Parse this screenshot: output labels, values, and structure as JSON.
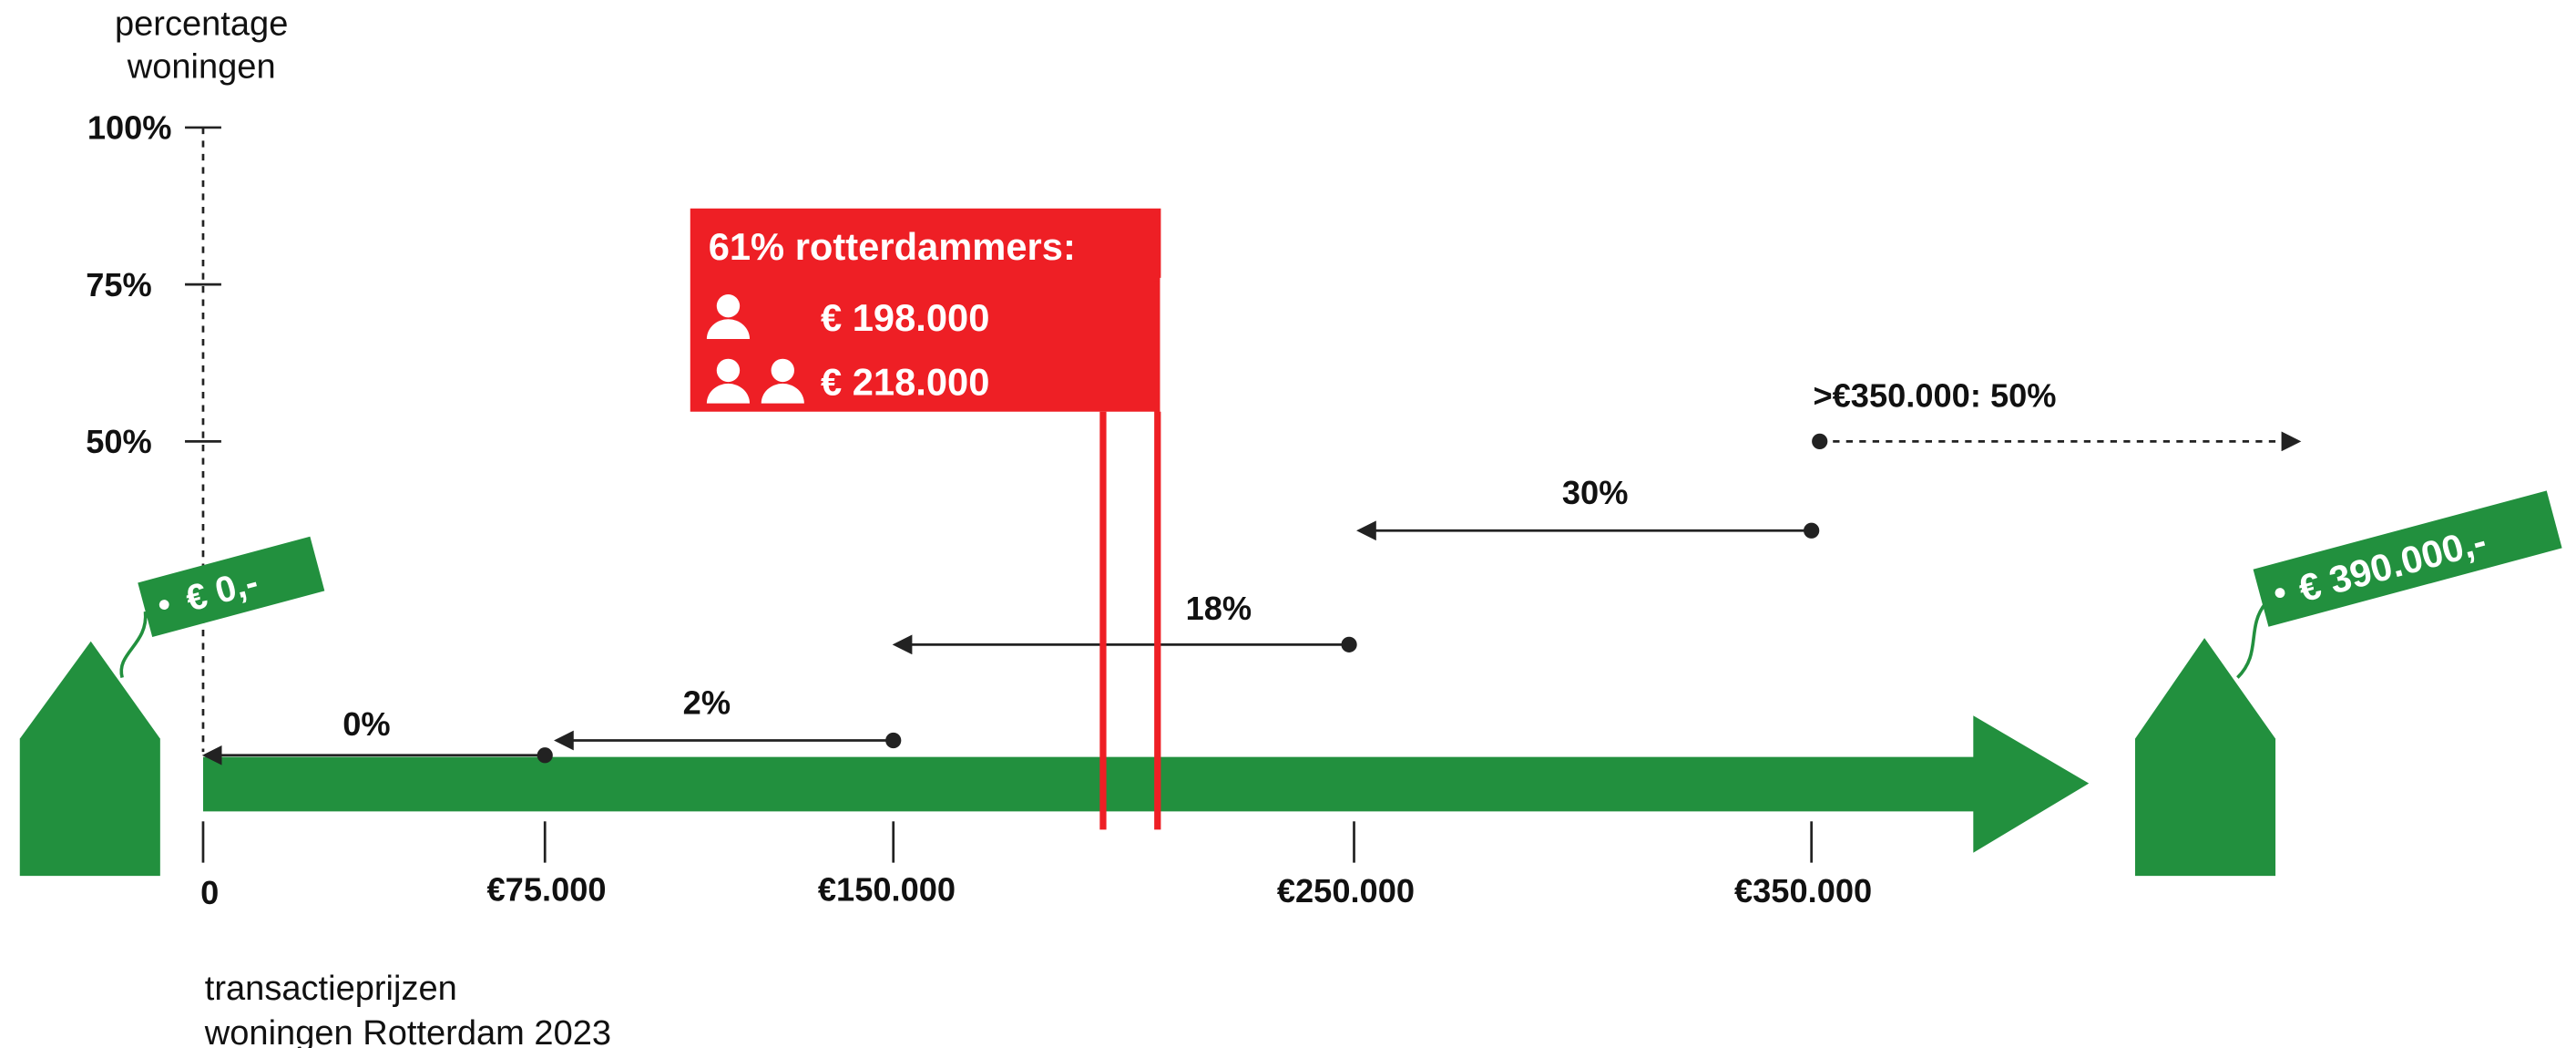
{
  "y_axis": {
    "label": [
      "percentage",
      "woningen"
    ],
    "ticks": [
      "100%",
      "75%",
      "50%"
    ]
  },
  "x_axis": {
    "label": [
      "transactieprijzen",
      "woningen Rotterdam 2023"
    ],
    "ticks": [
      "0",
      "€75.000",
      "€150.000",
      "€250.000",
      "€350.000"
    ]
  },
  "price_tags": [
    "€ 0,-",
    "€ 390.000,-"
  ],
  "ranges": [
    "0%",
    "2%",
    "18%",
    "30%",
    ">€350.000: 50%"
  ],
  "callout": {
    "title": "61% rotterdammers:",
    "rows": [
      "€ 198.000",
      "€ 218.000"
    ]
  }
}
